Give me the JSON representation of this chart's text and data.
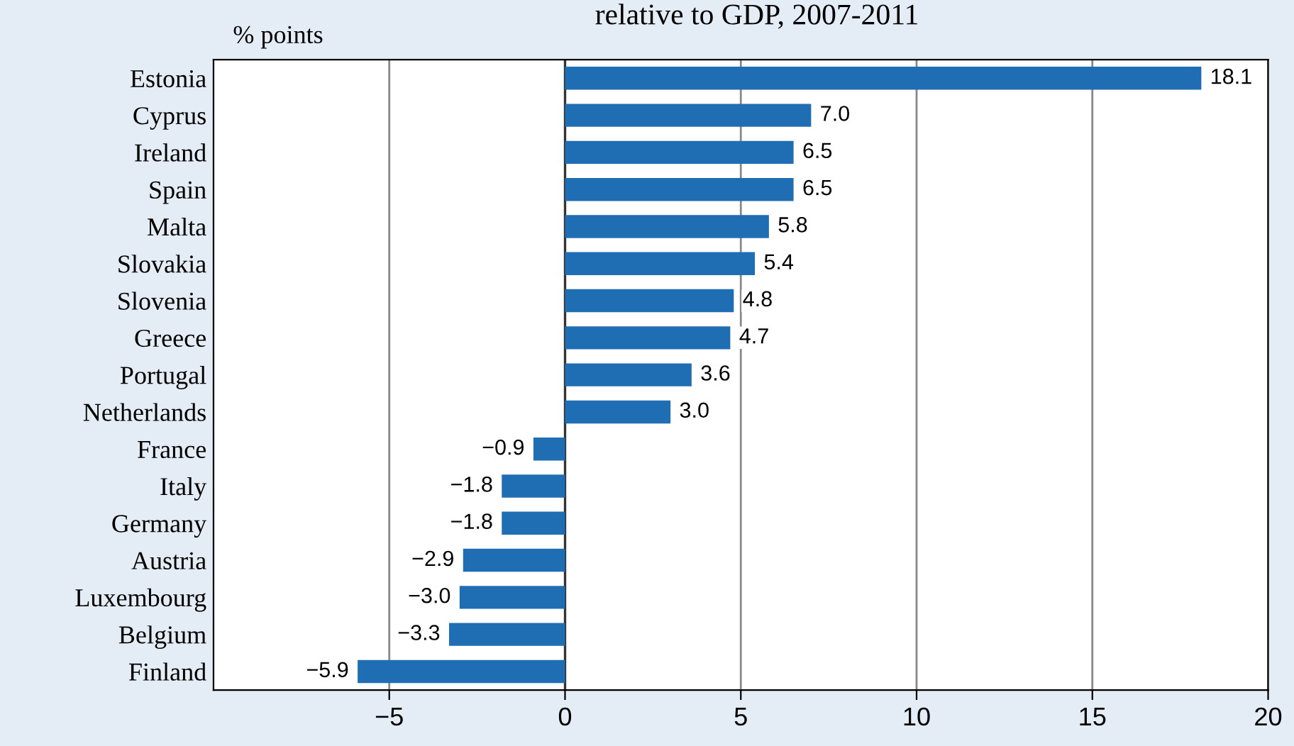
{
  "chart_data": {
    "type": "bar",
    "orientation": "horizontal",
    "title": "relative to GDP, 2007-2011",
    "xlabel": "% points",
    "categories": [
      "Estonia",
      "Cyprus",
      "Ireland",
      "Spain",
      "Malta",
      "Slovakia",
      "Slovenia",
      "Greece",
      "Portugal",
      "Netherlands",
      "France",
      "Italy",
      "Germany",
      "Austria",
      "Luxembourg",
      "Belgium",
      "Finland"
    ],
    "values": [
      18.1,
      7.0,
      6.5,
      6.5,
      5.8,
      5.4,
      4.8,
      4.7,
      3.6,
      3.0,
      -0.9,
      -1.8,
      -1.8,
      -2.9,
      -3.0,
      -3.3,
      -5.9
    ],
    "value_labels": [
      "18.1",
      "7.0",
      "6.5",
      "6.5",
      "5.8",
      "5.4",
      "4.8",
      "4.7",
      "3.6",
      "3.0",
      "−0.9",
      "−1.8",
      "−1.8",
      "−2.9",
      "−3.0",
      "−3.3",
      "−5.9"
    ],
    "color": "#1f6db3",
    "xlim": [
      -10,
      20
    ],
    "xticks": [
      {
        "value": -5,
        "label": "−5"
      },
      0,
      5,
      10,
      15,
      20
    ],
    "grid": "x",
    "ref_lines": [
      {
        "axis": "x",
        "value": 0,
        "color": "#333333"
      }
    ]
  }
}
